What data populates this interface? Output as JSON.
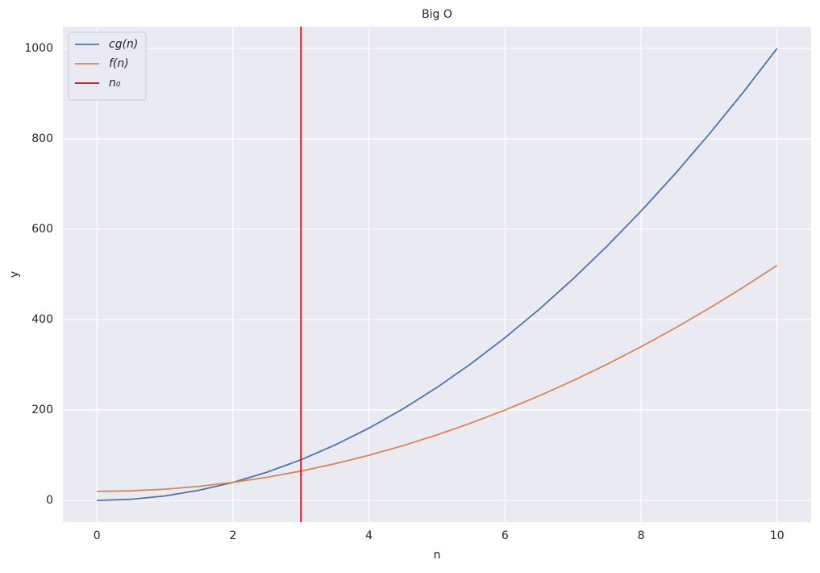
{
  "chart_data": {
    "type": "line",
    "title": "Big O",
    "xlabel": "n",
    "ylabel": "y",
    "x": [
      0,
      0.5,
      1,
      1.5,
      2,
      2.5,
      3,
      3.5,
      4,
      4.5,
      5,
      5.5,
      6,
      6.5,
      7,
      7.5,
      8,
      8.5,
      9,
      9.5,
      10
    ],
    "series": [
      {
        "name": "cg(n)",
        "color": "#4c72b0",
        "values": [
          0,
          2.5,
          10,
          22.5,
          40,
          62.5,
          90,
          122.5,
          160,
          202.5,
          250,
          302.5,
          360,
          422.5,
          490,
          562.5,
          640,
          722.5,
          810,
          902.5,
          1000
        ]
      },
      {
        "name": "f(n)",
        "color": "#dd8452",
        "values": [
          20,
          21.25,
          25,
          31.25,
          40,
          51.25,
          65,
          81.25,
          100,
          121.25,
          145,
          171.25,
          200,
          231.25,
          265,
          301.25,
          340,
          381.25,
          425,
          471.25,
          520
        ]
      }
    ],
    "vlines": [
      {
        "name": "n₀",
        "color": "#e00000",
        "x": 3
      }
    ],
    "xlim": [
      -0.5,
      10.5
    ],
    "ylim": [
      -48,
      1048
    ],
    "xticks": [
      0,
      2,
      4,
      6,
      8,
      10
    ],
    "yticks": [
      0,
      200,
      400,
      600,
      800,
      1000
    ],
    "grid": true,
    "legend": "upper-left"
  }
}
